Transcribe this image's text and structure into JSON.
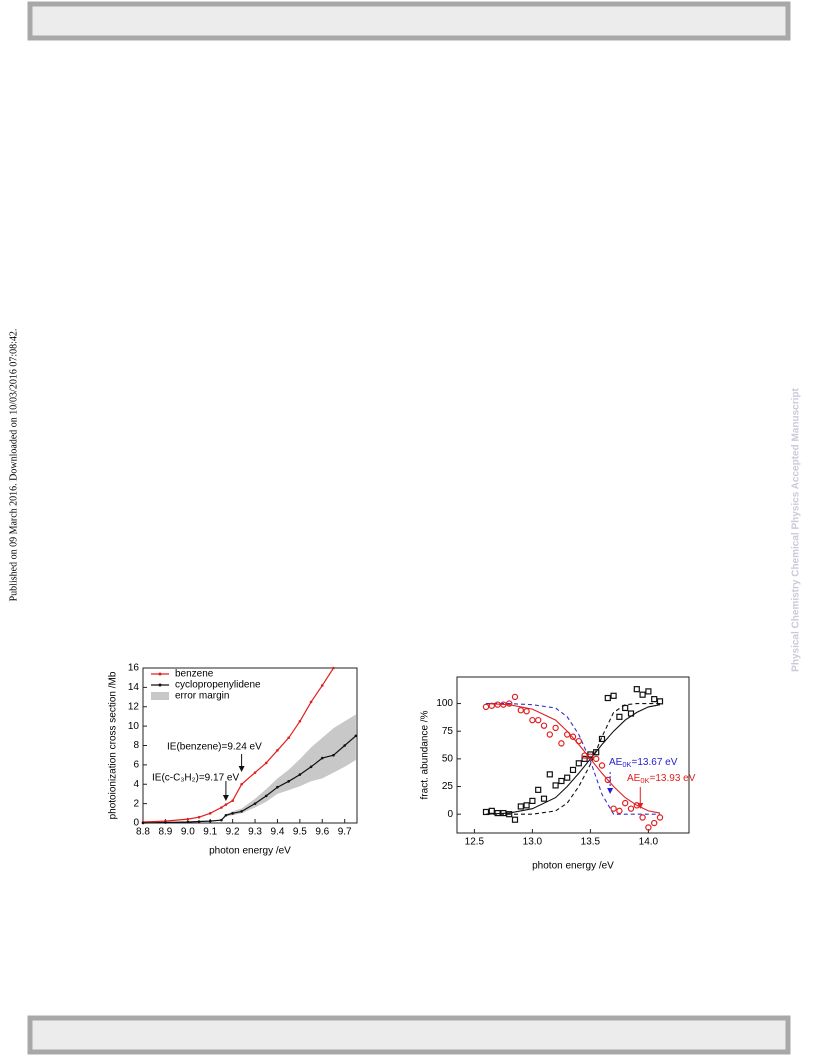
{
  "page": {
    "side_note": "Published on 09 March 2016. Downloaded on 10/03/2016 07:08:42.",
    "watermark": "Physical Chemistry Chemical Physics Accepted Manuscript"
  },
  "chart_data": [
    {
      "type": "line",
      "xlabel": "photon energy /eV",
      "ylabel": "photoionization cross section /Mb",
      "x": [
        8.8,
        8.9,
        9.0,
        9.05,
        9.1,
        9.15,
        9.17,
        9.2,
        9.24,
        9.3,
        9.35,
        9.4,
        9.45,
        9.5,
        9.55,
        9.6,
        9.65,
        9.7,
        9.75
      ],
      "series": [
        {
          "name": "benzene",
          "color": "#e02020",
          "marker": "dot",
          "values": [
            0.1,
            0.2,
            0.4,
            0.6,
            1.0,
            1.6,
            1.9,
            2.3,
            4.0,
            5.2,
            6.2,
            7.5,
            8.8,
            10.5,
            12.5,
            14.2,
            16,
            null,
            null
          ]
        },
        {
          "name": "cyclopropenylidene",
          "color": "#111111",
          "marker": "dot",
          "values": [
            0,
            0.05,
            0.1,
            0.15,
            0.2,
            0.3,
            0.8,
            1.0,
            1.2,
            2.0,
            2.8,
            3.7,
            4.3,
            5.0,
            5.8,
            6.7,
            7.0,
            8.0,
            9.0
          ]
        }
      ],
      "band": {
        "name": "error margin",
        "color": "#c8c8c8",
        "lower": [
          0,
          0.05,
          0.1,
          0.15,
          0.2,
          0.3,
          0.7,
          0.8,
          1.0,
          1.6,
          2.2,
          3.0,
          3.4,
          3.8,
          4.3,
          4.6,
          5.2,
          5.8,
          6.5
        ],
        "upper": [
          0,
          0.05,
          0.1,
          0.15,
          0.2,
          0.3,
          0.9,
          1.2,
          1.5,
          2.5,
          3.5,
          4.6,
          5.5,
          6.6,
          7.8,
          8.8,
          9.8,
          10.5,
          11.2
        ]
      },
      "annotations": [
        "IE(benzene)=9.24 eV",
        "IE(c-C₃H₂)=9.17 eV"
      ],
      "xlim": [
        8.8,
        9.755
      ],
      "ylim": [
        0,
        16
      ],
      "xticks": [
        8.8,
        8.9,
        {
          "value": 9,
          "label": "9.0"
        },
        9.1,
        9.2,
        9.3,
        9.4,
        9.5,
        9.6,
        9.7
      ],
      "yticks": [
        0,
        2,
        4,
        6,
        8,
        10,
        12,
        14,
        16
      ]
    },
    {
      "type": "scatter",
      "xlabel": "photon energy /eV",
      "ylabel": "fract. abundance /%",
      "x": [
        12.6,
        12.65,
        12.7,
        12.75,
        12.8,
        12.85,
        12.9,
        12.95,
        13.0,
        13.05,
        13.1,
        13.15,
        13.2,
        13.25,
        13.3,
        13.35,
        13.4,
        13.45,
        13.5,
        13.55,
        13.6,
        13.65,
        13.7,
        13.75,
        13.8,
        13.85,
        13.9,
        13.95,
        14.0,
        14.05,
        14.1
      ],
      "series": [
        {
          "color": "#111111",
          "marker": "square",
          "values": [
            2,
            3,
            1,
            1,
            0,
            -5,
            7,
            8,
            12,
            22,
            14,
            36,
            26,
            30,
            33,
            40,
            46,
            50,
            54,
            56,
            68,
            105,
            107,
            88,
            96,
            91,
            113,
            108,
            111,
            104,
            102
          ]
        },
        {
          "color": "#e02020",
          "marker": "circle",
          "values": [
            97,
            98,
            99,
            99,
            100,
            106,
            94,
            93,
            85,
            85,
            80,
            72,
            78,
            64,
            72,
            70,
            66,
            53,
            52,
            50,
            44,
            31,
            5,
            3,
            10,
            5,
            8,
            -3,
            -12,
            -8,
            -3
          ]
        }
      ],
      "fit_x": [
        12.6,
        12.8,
        13.0,
        13.2,
        13.3,
        13.4,
        13.5,
        13.6,
        13.7,
        13.8,
        13.9,
        14.0,
        14.1
      ],
      "fits": [
        {
          "color": "#111111",
          "dash": false,
          "values": [
            0,
            1,
            5,
            15,
            25,
            37,
            50,
            63,
            75,
            85,
            92,
            97,
            99
          ]
        },
        {
          "color": "#e02020",
          "dash": false,
          "values": [
            100,
            99,
            95,
            85,
            75,
            63,
            50,
            37,
            25,
            15,
            8,
            3,
            1
          ]
        },
        {
          "color": "#111111",
          "dash": true,
          "values": [
            0,
            0,
            0,
            3,
            10,
            25,
            45,
            70,
            92,
            99,
            100,
            100,
            100
          ]
        },
        {
          "color": "#3333cc",
          "dash": true,
          "values": [
            100,
            100,
            99,
            96,
            88,
            72,
            48,
            18,
            0,
            0,
            0,
            0,
            0
          ]
        }
      ],
      "annotations": [
        {
          "main": "AE",
          "sub": "0K",
          "rest": "=13.67 eV",
          "color": "#2222cc"
        },
        {
          "main": "AE",
          "sub": "0K",
          "rest": "=13.93 eV",
          "color": "#e02020"
        }
      ],
      "xlim": [
        12.35,
        14.35
      ],
      "ylim": [
        -17,
        124
      ],
      "xticks": [
        12.5,
        {
          "value": 13,
          "label": "13.0"
        },
        13.5,
        {
          "value": 14,
          "label": "14.0"
        }
      ],
      "yticks": [
        0,
        25,
        50,
        75,
        100
      ]
    }
  ]
}
